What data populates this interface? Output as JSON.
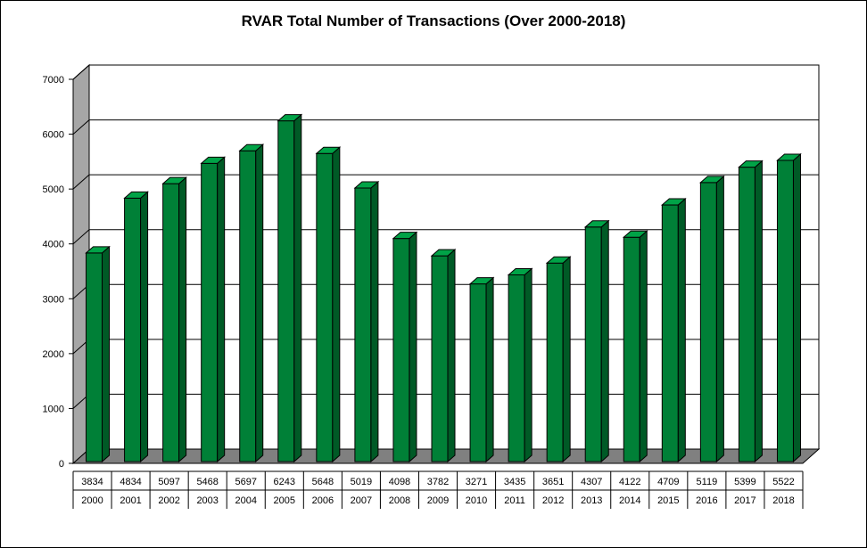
{
  "chart_data": {
    "type": "bar",
    "title": "RVAR Total Number of Transactions (Over 2000-2018)",
    "categories": [
      "2000",
      "2001",
      "2002",
      "2003",
      "2004",
      "2005",
      "2006",
      "2007",
      "2008",
      "2009",
      "2010",
      "2011",
      "2012",
      "2013",
      "2014",
      "2015",
      "2016",
      "2017",
      "2018"
    ],
    "values": [
      3834,
      4834,
      5097,
      5468,
      5697,
      6243,
      5648,
      5019,
      4098,
      3782,
      3271,
      3435,
      3651,
      4307,
      4122,
      4709,
      5119,
      5399,
      5522
    ],
    "value_labels": [
      "3834",
      "4834",
      "5097",
      "5468",
      "5697",
      "6243",
      "5648",
      "5019",
      "4098",
      "3782",
      "3271",
      "3435",
      "3651",
      "4307",
      "4122",
      "4709",
      "5119",
      "5399",
      "5522"
    ],
    "y_ticks": [
      "0",
      "1000",
      "2000",
      "3000",
      "4000",
      "5000",
      "6000",
      "7000"
    ],
    "ylim": [
      0,
      7000
    ],
    "grid": true,
    "style": "3d",
    "bar_color": "#008037",
    "bar_side_color": "#005a26",
    "bar_top_color": "#00a347",
    "wall_color": "#a6a6a6",
    "floor_color": "#808080",
    "data_table": true
  }
}
